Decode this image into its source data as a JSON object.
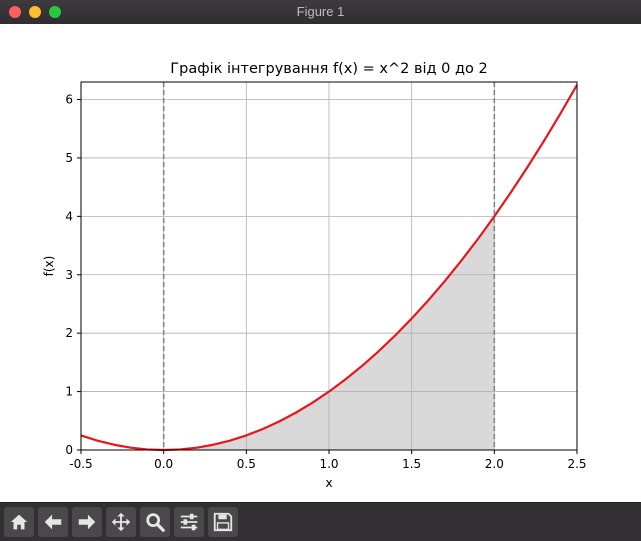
{
  "window": {
    "title": "Figure 1"
  },
  "toolbar": {
    "buttons": [
      {
        "icon": "home-icon"
      },
      {
        "icon": "arrow-left-icon"
      },
      {
        "icon": "arrow-right-icon"
      },
      {
        "icon": "move-icon"
      },
      {
        "icon": "zoom-icon"
      },
      {
        "icon": "sliders-icon"
      },
      {
        "icon": "save-icon"
      }
    ]
  },
  "chart_data": {
    "type": "line",
    "title": "Графік інтегрування f(x) = x^2 від 0 до 2",
    "xlabel": "x",
    "ylabel": "f(x)",
    "xlim": [
      -0.5,
      2.5
    ],
    "ylim": [
      0,
      6.3
    ],
    "xticks": [
      -0.5,
      0.0,
      0.5,
      1.0,
      1.5,
      2.0,
      2.5
    ],
    "xtick_labels": [
      "-0.5",
      "0.0",
      "0.5",
      "1.0",
      "1.5",
      "2.0",
      "2.5"
    ],
    "yticks": [
      0,
      1,
      2,
      3,
      4,
      5,
      6
    ],
    "ytick_labels": [
      "0",
      "1",
      "2",
      "3",
      "4",
      "5",
      "6"
    ],
    "grid": true,
    "series": [
      {
        "color": "#e8161c",
        "x": [
          -0.5,
          -0.4,
          -0.3,
          -0.2,
          -0.1,
          0.0,
          0.1,
          0.2,
          0.3,
          0.4,
          0.5,
          0.6,
          0.7,
          0.8,
          0.9,
          1.0,
          1.1,
          1.2,
          1.3,
          1.4,
          1.5,
          1.6,
          1.7,
          1.8,
          1.9,
          2.0,
          2.1,
          2.2,
          2.3,
          2.4,
          2.5
        ],
        "y": [
          0.25,
          0.16,
          0.09,
          0.04,
          0.01,
          0.0,
          0.01,
          0.04,
          0.09,
          0.16,
          0.25,
          0.36,
          0.49,
          0.64,
          0.81,
          1.0,
          1.21,
          1.44,
          1.69,
          1.96,
          2.25,
          2.56,
          2.89,
          3.24,
          3.61,
          4.0,
          4.41,
          4.84,
          5.29,
          5.76,
          6.25
        ]
      }
    ],
    "shaded_region": {
      "x_from": 0,
      "x_to": 2,
      "color": "#d9d9d9"
    },
    "vlines": [
      {
        "x": 0,
        "style": "dashed",
        "color": "#808080"
      },
      {
        "x": 2,
        "style": "dashed",
        "color": "#808080"
      }
    ]
  }
}
